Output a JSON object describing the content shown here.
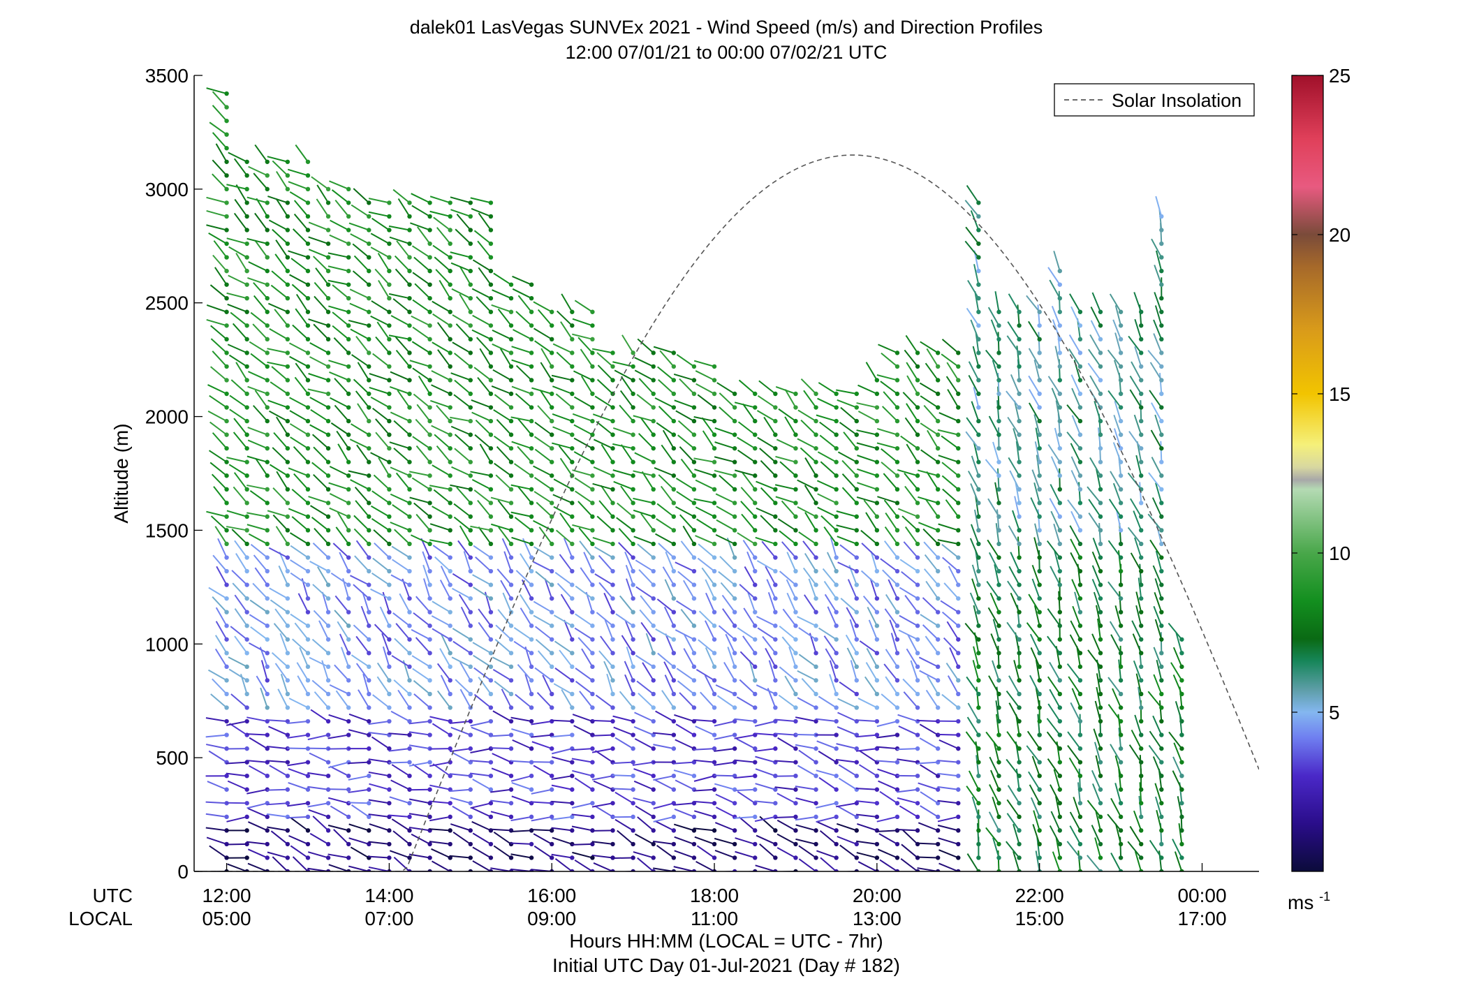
{
  "chart_data": {
    "type": "wind_barb_profile",
    "title": "dalek01 LasVegas SUNVEx 2021 - Wind Speed (m/s) and Direction Profiles",
    "subtitle": "12:00 07/01/21 to 00:00 07/02/21  UTC",
    "ylabel": "Altitude (m)",
    "ylim": [
      0,
      3500
    ],
    "yticks": [
      0,
      500,
      1000,
      1500,
      2000,
      2500,
      3000,
      3500
    ],
    "x_row_labels": [
      "UTC",
      "LOCAL"
    ],
    "xticks_utc": [
      "12:00",
      "14:00",
      "16:00",
      "18:00",
      "20:00",
      "22:00",
      "00:00"
    ],
    "xticks_local": [
      "05:00",
      "07:00",
      "09:00",
      "11:00",
      "13:00",
      "15:00",
      "17:00"
    ],
    "xtick_hours": [
      12,
      14,
      16,
      18,
      20,
      22,
      24
    ],
    "xlim_hours": [
      11.6,
      24.7
    ],
    "xlabel": "Hours HH:MM  (LOCAL = UTC - 7hr)",
    "xlabel2": "Initial UTC Day 01-Jul-2021 (Day # 182)",
    "legend": {
      "label": "Solar Insolation",
      "position": "top-right",
      "color": "#555555"
    },
    "solar_insolation": {
      "peak_hour": 19.7,
      "peak_altitude": 3150,
      "half_width_hours": 5.5
    },
    "colorbar": {
      "range": [
        0,
        25
      ],
      "ticks": [
        5,
        10,
        15,
        20,
        25
      ],
      "unit": "ms",
      "unit_exp": "-1",
      "stops": [
        {
          "v": 0,
          "c": "#0b0b3a"
        },
        {
          "v": 1.5,
          "c": "#2a0d8a"
        },
        {
          "v": 3,
          "c": "#4a28c8"
        },
        {
          "v": 4.2,
          "c": "#6f7ff0"
        },
        {
          "v": 5,
          "c": "#84b7f0"
        },
        {
          "v": 5.7,
          "c": "#5e9ea8"
        },
        {
          "v": 6.6,
          "c": "#17865a"
        },
        {
          "v": 7.3,
          "c": "#0a6a14"
        },
        {
          "v": 8.5,
          "c": "#138f1f"
        },
        {
          "v": 10,
          "c": "#49a74a"
        },
        {
          "v": 12,
          "c": "#b4dab3"
        },
        {
          "v": 12.3,
          "c": "#a8a8a8"
        },
        {
          "v": 12.7,
          "c": "#d8d8a0"
        },
        {
          "v": 13.4,
          "c": "#f5f07a"
        },
        {
          "v": 15,
          "c": "#f2c400"
        },
        {
          "v": 17,
          "c": "#d99b1a"
        },
        {
          "v": 19,
          "c": "#a6692a"
        },
        {
          "v": 20,
          "c": "#7a4b3a"
        },
        {
          "v": 21.5,
          "c": "#e85a80"
        },
        {
          "v": 23,
          "c": "#e0405a"
        },
        {
          "v": 25,
          "c": "#a0102a"
        }
      ]
    },
    "profiles": {
      "start_hour": 12.0,
      "interval_hours": 0.25,
      "count": 48,
      "lowest_altitude": 0,
      "altitude_step": 60,
      "top_altitudes": [
        3470,
        3160,
        3130,
        3120,
        3120,
        3020,
        3020,
        2980,
        2980,
        2980,
        2980,
        2980,
        2980,
        2980,
        2600,
        2600,
        2460,
        2460,
        2460,
        2320,
        2320,
        2320,
        2320,
        2220,
        2220,
        2120,
        2120,
        2120,
        2120,
        2120,
        2120,
        2150,
        2210,
        2320,
        2320,
        2320,
        2320,
        2980,
        2460,
        2460,
        2460,
        2690,
        2460,
        2460,
        2460,
        2460,
        2880,
        1050
      ],
      "speed_regimes": [
        {
          "from": 0,
          "to": 200,
          "speed": 1.2,
          "direction_deg": 250
        },
        {
          "from": 200,
          "to": 700,
          "speed": 3.2,
          "direction_deg": 260
        },
        {
          "from": 700,
          "to": 1400,
          "speed": 4.4,
          "direction_deg": 220
        },
        {
          "from": 1400,
          "to": 3500,
          "speed": 8.5,
          "direction_deg": 235
        }
      ]
    }
  }
}
